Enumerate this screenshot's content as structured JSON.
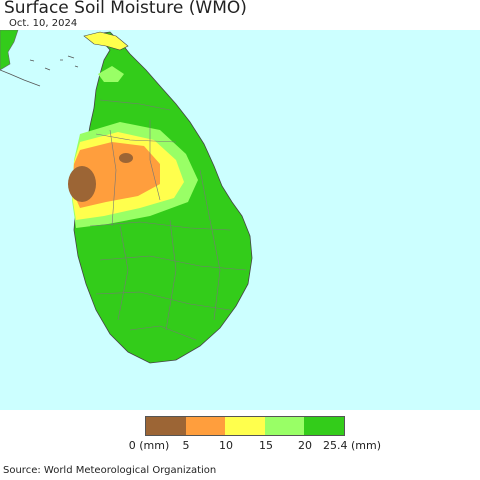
{
  "title": "Surface Soil Moisture (WMO)",
  "date": "Oct. 10, 2024",
  "legend": {
    "colors": [
      "#9c6535",
      "#ff9e3d",
      "#ffff4d",
      "#99ff66",
      "#33cc1a"
    ],
    "labels": [
      "0 (mm)",
      "5",
      "10",
      "15",
      "20",
      "25.4 (mm)"
    ]
  },
  "colors": {
    "ocean": "#ccffff",
    "land_wet": "#33cc1a",
    "land_moderate": "#99ff66",
    "land_medium": "#ffff4d",
    "land_dry": "#ff9e3d",
    "land_very_dry": "#9c6535",
    "border": "#777777"
  },
  "source": "Source: World Meteorological Organization"
}
